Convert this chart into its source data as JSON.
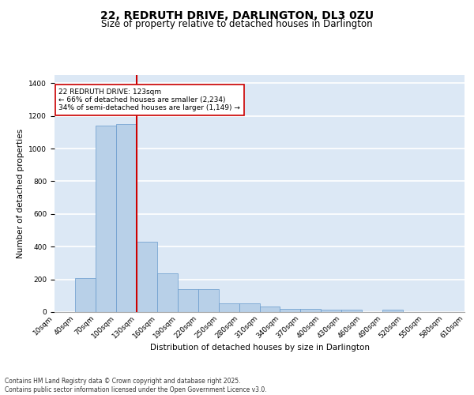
{
  "title1": "22, REDRUTH DRIVE, DARLINGTON, DL3 0ZU",
  "title2": "Size of property relative to detached houses in Darlington",
  "xlabel": "Distribution of detached houses by size in Darlington",
  "ylabel": "Number of detached properties",
  "bar_values": [
    0,
    207,
    1140,
    1150,
    430,
    235,
    140,
    140,
    55,
    55,
    35,
    20,
    20,
    15,
    15,
    0,
    15,
    0,
    0,
    0
  ],
  "categories": [
    "10sqm",
    "40sqm",
    "70sqm",
    "100sqm",
    "130sqm",
    "160sqm",
    "190sqm",
    "220sqm",
    "250sqm",
    "280sqm",
    "310sqm",
    "340sqm",
    "370sqm",
    "400sqm",
    "430sqm",
    "460sqm",
    "490sqm",
    "520sqm",
    "550sqm",
    "580sqm",
    "610sqm"
  ],
  "bar_color": "#b8d0e8",
  "bar_edge_color": "#6699cc",
  "background_color": "#dce8f5",
  "grid_color": "#ffffff",
  "vline_color": "#cc0000",
  "annotation_text": "22 REDRUTH DRIVE: 123sqm\n← 66% of detached houses are smaller (2,234)\n34% of semi-detached houses are larger (1,149) →",
  "annotation_box_color": "#ffffff",
  "annotation_box_edge": "#cc0000",
  "ylim": [
    0,
    1450
  ],
  "footnote": "Contains HM Land Registry data © Crown copyright and database right 2025.\nContains public sector information licensed under the Open Government Licence v3.0.",
  "title1_fontsize": 10,
  "title2_fontsize": 8.5,
  "xlabel_fontsize": 7.5,
  "ylabel_fontsize": 7.5,
  "tick_fontsize": 6.5,
  "annotation_fontsize": 6.5,
  "footnote_fontsize": 5.5
}
